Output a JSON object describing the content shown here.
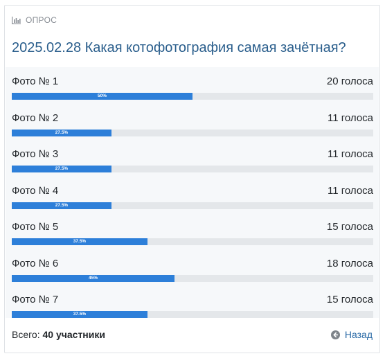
{
  "poll": {
    "header_label": "ОПРОС",
    "header_icon": "bar-chart-icon",
    "title": "2025.02.28 Какая котофотография самая зачётная?",
    "colors": {
      "accent": "#2d7fd9",
      "title": "#2a5e8c",
      "track": "#e4e7ea",
      "link": "#2a6aa6"
    },
    "options": [
      {
        "label": "Фото № 1",
        "votes": "20 голоса",
        "percent": 50,
        "percent_label": "50%"
      },
      {
        "label": "Фото № 2",
        "votes": "11 голоса",
        "percent": 27.5,
        "percent_label": "27.5%"
      },
      {
        "label": "Фото № 3",
        "votes": "11 голоса",
        "percent": 27.5,
        "percent_label": "27.5%"
      },
      {
        "label": "Фото № 4",
        "votes": "11 голоса",
        "percent": 27.5,
        "percent_label": "27.5%"
      },
      {
        "label": "Фото № 5",
        "votes": "15 голоса",
        "percent": 37.5,
        "percent_label": "37.5%"
      },
      {
        "label": "Фото № 6",
        "votes": "18 голоса",
        "percent": 45,
        "percent_label": "45%"
      },
      {
        "label": "Фото № 7",
        "votes": "15 голоса",
        "percent": 37.5,
        "percent_label": "37.5%"
      }
    ],
    "footer": {
      "total_prefix": "Всего:",
      "total_value": "40 участники",
      "back_label": "Назад",
      "back_icon": "circle-arrow-left-icon"
    }
  }
}
